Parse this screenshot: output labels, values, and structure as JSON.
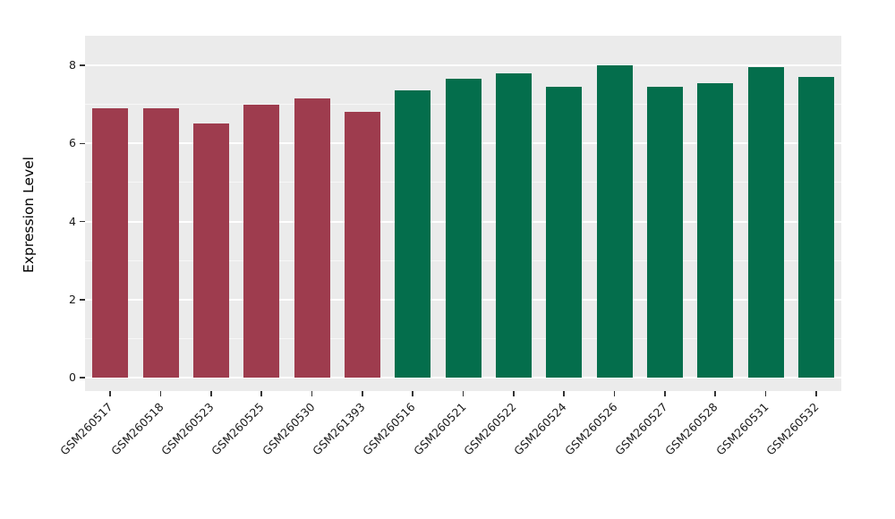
{
  "figure": {
    "background": "#ffffff",
    "panel_background": "#ebebeb",
    "grid_major_color": "#ffffff",
    "grid_minor_color": "#f7f7f7",
    "axis_text_color": "#1a1a1a"
  },
  "chart_data": {
    "type": "bar",
    "title": "",
    "xlabel": "",
    "ylabel": "Expression Level",
    "ylim": [
      0,
      8.4
    ],
    "yticks_major": [
      0,
      2,
      4,
      6,
      8
    ],
    "yticks_minor": [
      1,
      3,
      5,
      7
    ],
    "grid": true,
    "legend_position": "none",
    "categories": [
      "GSM260517",
      "GSM260518",
      "GSM260523",
      "GSM260525",
      "GSM260530",
      "GSM261393",
      "GSM260516",
      "GSM260521",
      "GSM260522",
      "GSM260524",
      "GSM260526",
      "GSM260527",
      "GSM260528",
      "GSM260531",
      "GSM260532"
    ],
    "values": [
      6.9,
      6.9,
      6.5,
      7.0,
      7.15,
      6.8,
      7.35,
      7.65,
      7.8,
      7.45,
      8.0,
      7.45,
      7.55,
      7.95,
      7.7
    ],
    "groups": [
      "A",
      "A",
      "A",
      "A",
      "A",
      "A",
      "B",
      "B",
      "B",
      "B",
      "B",
      "B",
      "B",
      "B",
      "B"
    ],
    "group_colors": {
      "A": "#9e3c4e",
      "B": "#046e4c"
    }
  }
}
